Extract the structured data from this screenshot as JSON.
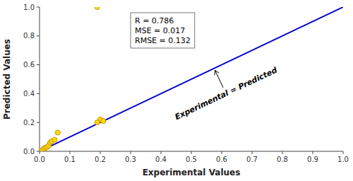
{
  "chart_data": {
    "type": "scatter",
    "xlabel": "Experimental Values",
    "ylabel": "Predicted Values",
    "series": [
      {
        "type": "line",
        "color": "#0000CC",
        "x": [
          0,
          1
        ],
        "values": [
          0,
          1
        ]
      },
      {
        "type": "scatter",
        "color": "#FFD700",
        "x": [
          0.005,
          0.01,
          0.015,
          0.02,
          0.025,
          0.03,
          0.035,
          0.04,
          0.05,
          0.06,
          0.2,
          0.21,
          0.19
        ],
        "values": [
          0.005,
          0.01,
          0.02,
          0.025,
          0.03,
          0.04,
          0.06,
          0.07,
          0.08,
          0.13,
          0.22,
          0.21,
          0.2
        ]
      },
      {
        "type": "scatter",
        "color": "#FFD700",
        "x": [
          0.19
        ],
        "values": [
          1.0
        ]
      }
    ],
    "xlim": [
      0,
      1
    ],
    "ylim": [
      0,
      1
    ],
    "xticks": [
      {
        "value": 0,
        "label": "0.0"
      },
      0.1,
      0.2,
      0.3,
      0.4,
      0.5,
      0.6,
      0.7,
      0.8,
      0.9,
      {
        "value": 1,
        "label": "1.0"
      }
    ],
    "yticks": [
      {
        "value": 0,
        "label": "0.0"
      },
      0.2,
      0.4,
      0.6,
      0.8,
      {
        "value": 1.0,
        "label": "1.0"
      }
    ],
    "annotations": [
      {
        "text": "Experimental = Predicted",
        "x": 0.575,
        "y": 0.575
      }
    ],
    "text_box": [
      "R = 0.786",
      "MSE = 0.017",
      "RMSE = 0.132"
    ],
    "grid": false
  }
}
